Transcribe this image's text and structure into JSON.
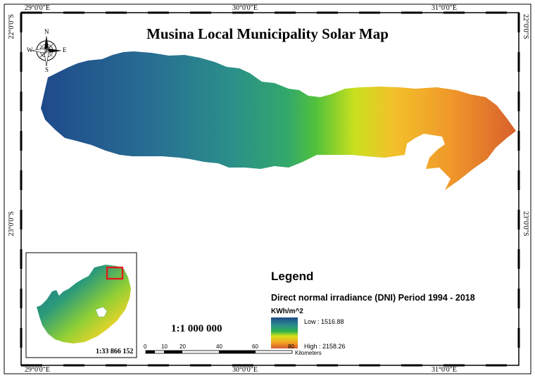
{
  "map": {
    "title": "Musina Local Municipality Solar Map"
  },
  "graticule": {
    "top": [
      "29°0'0\"E",
      "30°0'0\"E",
      "31°0'0\"E"
    ],
    "bottom": [
      "29°0'0\"E",
      "30°0'0\"E",
      "31°0'0\"E"
    ],
    "left": [
      "22°0'0\"S",
      "23°0'0\"S"
    ],
    "right": [
      "22°0'0\"S",
      "23°0'0\"S"
    ]
  },
  "compass": {
    "n": "N",
    "s": "S",
    "e": "E",
    "w": "W"
  },
  "legend": {
    "title": "Legend",
    "layer": "Direct normal irradiance (DNI) Period 1994 - 2018",
    "unit": "KWh/m^2",
    "low": "Low : 1516.88",
    "high": "High : 2158.26",
    "colors": {
      "low": "#1f4a8a",
      "mid": "#2fb24a",
      "yellow": "#d6e21a",
      "high": "#d45a2e"
    }
  },
  "scale": {
    "ratio": "1:1 000 000",
    "ticks": [
      "0",
      "10",
      "20",
      "40",
      "60",
      "80"
    ],
    "unit": "Kilometers"
  },
  "inset": {
    "scale": "1:33 866 152",
    "highlight_color": "#e01b1b"
  }
}
